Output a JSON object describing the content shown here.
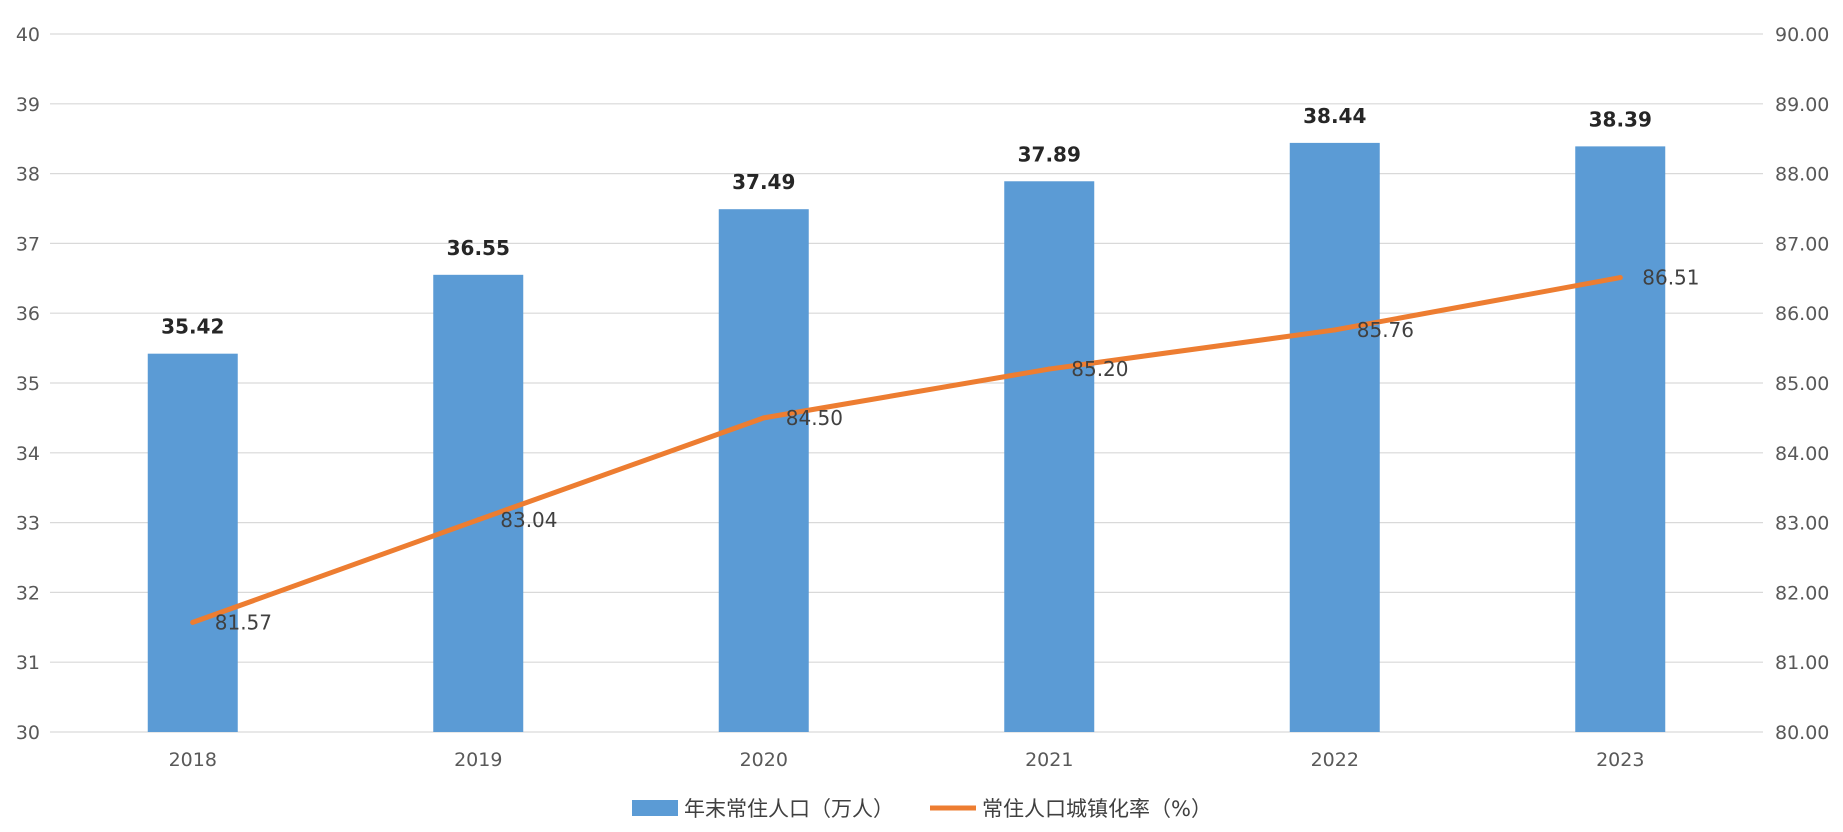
{
  "chart_data": {
    "type": "bar",
    "categories": [
      "2018",
      "2019",
      "2020",
      "2021",
      "2022",
      "2023"
    ],
    "series": [
      {
        "name": "年末常住人口（万人）",
        "type": "bar",
        "axis": "left",
        "values": [
          35.42,
          36.55,
          37.49,
          37.89,
          38.44,
          38.39
        ],
        "labels": [
          "35.42",
          "36.55",
          "37.49",
          "37.89",
          "38.44",
          "38.39"
        ],
        "color": "#5b9bd5"
      },
      {
        "name": "常住人口城镇化率（%）",
        "type": "line",
        "axis": "right",
        "values": [
          81.57,
          83.04,
          84.5,
          85.2,
          85.76,
          86.51
        ],
        "labels": [
          "81.57",
          "83.04",
          "84.50",
          "85.20",
          "85.76",
          "86.51"
        ],
        "color": "#ed7d31"
      }
    ],
    "y_left": {
      "range": [
        30,
        40
      ],
      "ticks": [
        "30",
        "31",
        "32",
        "33",
        "34",
        "35",
        "36",
        "37",
        "38",
        "39",
        "40"
      ]
    },
    "y_right": {
      "range": [
        80,
        90
      ],
      "ticks": [
        "80.00",
        "81.00",
        "82.00",
        "83.00",
        "84.00",
        "85.00",
        "86.00",
        "87.00",
        "88.00",
        "89.00",
        "90.00"
      ]
    },
    "grid": true,
    "legend": "bottom"
  }
}
